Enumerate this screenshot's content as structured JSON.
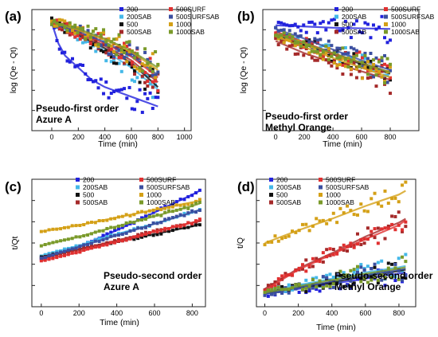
{
  "chart_data": [
    {
      "panel": "(a)",
      "type": "scatter",
      "annotation": [
        "Pseudo-first order",
        "Azure A"
      ],
      "xlabel": "Time (min)",
      "ylabel": "log (Qe - Qt)",
      "xlim": [
        -150,
        1050
      ],
      "ylim": [
        0,
        1
      ],
      "xticks": [
        0,
        200,
        400,
        600,
        800,
        1000
      ],
      "legend_columns": [
        [
          "200",
          "200SAB",
          "500",
          "500SAB"
        ],
        [
          "500SURF",
          "500SURFSAB",
          "1000",
          "1000SAB"
        ]
      ],
      "series": [
        {
          "name": "200",
          "color": "#2222dd",
          "x": [
            0,
            50,
            100,
            200,
            300,
            400,
            500,
            600,
            700,
            800
          ],
          "y": [
            0.89,
            0.72,
            0.62,
            0.52,
            0.42,
            0.36,
            0.32,
            0.28,
            0.24,
            0.2
          ]
        },
        {
          "name": "200SAB",
          "color": "#44b8e8",
          "x": [
            0,
            200,
            400,
            600,
            800
          ],
          "y": [
            0.89,
            0.78,
            0.66,
            0.52,
            0.34
          ]
        },
        {
          "name": "500",
          "color": "#111111",
          "x": [
            0,
            200,
            400,
            600,
            800
          ],
          "y": [
            0.9,
            0.79,
            0.68,
            0.56,
            0.36
          ]
        },
        {
          "name": "500SAB",
          "color": "#a52a2a",
          "x": [
            0,
            200,
            400,
            600,
            800
          ],
          "y": [
            0.9,
            0.8,
            0.7,
            0.58,
            0.4
          ]
        },
        {
          "name": "500SURF",
          "color": "#e03030",
          "x": [
            0,
            200,
            400,
            600,
            800
          ],
          "y": [
            0.9,
            0.81,
            0.72,
            0.61,
            0.44
          ]
        },
        {
          "name": "500SURFSAB",
          "color": "#3b4fa0",
          "x": [
            0,
            200,
            400,
            600,
            800
          ],
          "y": [
            0.9,
            0.82,
            0.73,
            0.62,
            0.46
          ]
        },
        {
          "name": "1000",
          "color": "#d4a017",
          "x": [
            0,
            200,
            400,
            600,
            800
          ],
          "y": [
            0.9,
            0.83,
            0.75,
            0.65,
            0.5
          ]
        },
        {
          "name": "1000SAB",
          "color": "#7a9a2a",
          "x": [
            0,
            200,
            400,
            600,
            800
          ],
          "y": [
            0.9,
            0.84,
            0.76,
            0.66,
            0.52
          ]
        }
      ]
    },
    {
      "panel": "(b)",
      "type": "scatter",
      "annotation": [
        "Pseudo-first order",
        "Methyl Orange"
      ],
      "xlabel": "Time (min)",
      "ylabel": "log (Qe - Qt)",
      "xlim": [
        -90,
        1000
      ],
      "ylim": [
        0,
        1
      ],
      "xticks": [
        0,
        200,
        400,
        600,
        800
      ],
      "legend_columns": [
        [
          "200",
          "200SAB",
          "500",
          "500SAB"
        ],
        [
          "500SURF",
          "500SURFSAB",
          "1000",
          "1000SAB"
        ]
      ],
      "series": [
        {
          "name": "200",
          "color": "#2222dd",
          "x": [
            0,
            200,
            400,
            600,
            800
          ],
          "y": [
            0.87,
            0.86,
            0.85,
            0.845,
            0.84
          ]
        },
        {
          "name": "200SAB",
          "color": "#44b8e8",
          "x": [
            0,
            200,
            400,
            600,
            800
          ],
          "y": [
            0.8,
            0.72,
            0.64,
            0.56,
            0.48
          ]
        },
        {
          "name": "500",
          "color": "#111111",
          "x": [
            0,
            200,
            400,
            600,
            800
          ],
          "y": [
            0.79,
            0.71,
            0.63,
            0.55,
            0.47
          ]
        },
        {
          "name": "500SAB",
          "color": "#a52a2a",
          "x": [
            0,
            200,
            400,
            600,
            800
          ],
          "y": [
            0.74,
            0.64,
            0.56,
            0.49,
            0.42
          ]
        },
        {
          "name": "500SURF",
          "color": "#e03030",
          "x": [
            0,
            200,
            400,
            600,
            800
          ],
          "y": [
            0.82,
            0.73,
            0.64,
            0.56,
            0.48
          ]
        },
        {
          "name": "500SURFSAB",
          "color": "#3b4fa0",
          "x": [
            0,
            200,
            400,
            600,
            800
          ],
          "y": [
            0.84,
            0.76,
            0.67,
            0.58,
            0.5
          ]
        },
        {
          "name": "1000",
          "color": "#d4a017",
          "x": [
            0,
            200,
            400,
            600,
            800
          ],
          "y": [
            0.78,
            0.69,
            0.6,
            0.52,
            0.44
          ]
        },
        {
          "name": "1000SAB",
          "color": "#7a9a2a",
          "x": [
            0,
            200,
            400,
            600,
            800
          ],
          "y": [
            0.8,
            0.72,
            0.64,
            0.56,
            0.48
          ]
        }
      ]
    },
    {
      "panel": "(c)",
      "type": "scatter",
      "annotation": [
        "Pseudo-second order",
        "Azure A"
      ],
      "xlabel": "Time (min)",
      "ylabel": "t/Qt",
      "xlim": [
        -50,
        870
      ],
      "ylim": [
        0,
        1
      ],
      "xticks": [
        0,
        200,
        400,
        600,
        800
      ],
      "legend_columns": [
        [
          "200",
          "200SAB",
          "500",
          "500SAB"
        ],
        [
          "500SURF",
          "500SURFSAB",
          "1000",
          "1000SAB"
        ]
      ],
      "series": [
        {
          "name": "200",
          "color": "#2222dd",
          "x": [
            0,
            200,
            400,
            600,
            800,
            840
          ],
          "y": [
            0.37,
            0.47,
            0.6,
            0.74,
            0.88,
            0.91
          ]
        },
        {
          "name": "200SAB",
          "color": "#44b8e8",
          "x": [
            0,
            200,
            400,
            600,
            800,
            840
          ],
          "y": [
            0.4,
            0.48,
            0.57,
            0.65,
            0.74,
            0.76
          ]
        },
        {
          "name": "500",
          "color": "#111111",
          "x": [
            0,
            200,
            400,
            600,
            800,
            840
          ],
          "y": [
            0.39,
            0.45,
            0.51,
            0.57,
            0.63,
            0.65
          ]
        },
        {
          "name": "500SAB",
          "color": "#a52a2a",
          "x": [
            0,
            200,
            400,
            600,
            800,
            840
          ],
          "y": [
            0.38,
            0.45,
            0.52,
            0.59,
            0.66,
            0.67
          ]
        },
        {
          "name": "500SURF",
          "color": "#e03030",
          "x": [
            0,
            200,
            400,
            600,
            800,
            840
          ],
          "y": [
            0.36,
            0.43,
            0.51,
            0.59,
            0.66,
            0.68
          ]
        },
        {
          "name": "500SURFSAB",
          "color": "#3b4fa0",
          "x": [
            0,
            200,
            400,
            600,
            800,
            840
          ],
          "y": [
            0.38,
            0.47,
            0.56,
            0.65,
            0.74,
            0.76
          ]
        },
        {
          "name": "1000",
          "color": "#d4a017",
          "x": [
            0,
            200,
            400,
            600,
            800,
            840
          ],
          "y": [
            0.59,
            0.64,
            0.7,
            0.76,
            0.82,
            0.83
          ]
        },
        {
          "name": "1000SAB",
          "color": "#7a9a2a",
          "x": [
            0,
            200,
            400,
            600,
            800,
            840
          ],
          "y": [
            0.48,
            0.55,
            0.63,
            0.71,
            0.79,
            0.81
          ]
        }
      ]
    },
    {
      "panel": "(d)",
      "type": "scatter",
      "annotation": [
        "Pseudo-second order",
        "Methyl Orange"
      ],
      "xlabel": "Time (min)",
      "ylabel": "t/Q",
      "xlim": [
        -50,
        900
      ],
      "ylim": [
        0,
        1
      ],
      "xticks": [
        0,
        200,
        400,
        600,
        800
      ],
      "legend_columns": [
        [
          "200",
          "200SAB",
          "500",
          "500SAB"
        ],
        [
          "500SURF",
          "500SURFSAB",
          "1000",
          "1000SAB"
        ]
      ],
      "series": [
        {
          "name": "200",
          "color": "#2222dd",
          "x": [
            0,
            200,
            400,
            600,
            800,
            840
          ],
          "y": [
            0.1,
            0.14,
            0.18,
            0.22,
            0.26,
            0.27
          ]
        },
        {
          "name": "200SAB",
          "color": "#44b8e8",
          "x": [
            0,
            200,
            400,
            600,
            800,
            840
          ],
          "y": [
            0.12,
            0.17,
            0.22,
            0.27,
            0.31,
            0.32
          ]
        },
        {
          "name": "500",
          "color": "#111111",
          "x": [
            0,
            200,
            400,
            600,
            800,
            840
          ],
          "y": [
            0.11,
            0.15,
            0.19,
            0.24,
            0.28,
            0.29
          ]
        },
        {
          "name": "500SAB",
          "color": "#a52a2a",
          "x": [
            0,
            200,
            400,
            600,
            800,
            840
          ],
          "y": [
            0.14,
            0.3,
            0.42,
            0.55,
            0.66,
            0.69
          ]
        },
        {
          "name": "500SURF",
          "color": "#e03030",
          "x": [
            0,
            200,
            400,
            600,
            800,
            840
          ],
          "y": [
            0.13,
            0.29,
            0.41,
            0.53,
            0.64,
            0.68
          ]
        },
        {
          "name": "500SURFSAB",
          "color": "#3b4fa0",
          "x": [
            0,
            200,
            400,
            600,
            800,
            840
          ],
          "y": [
            0.1,
            0.15,
            0.2,
            0.25,
            0.29,
            0.3
          ]
        },
        {
          "name": "1000",
          "color": "#d4a017",
          "x": [
            0,
            200,
            400,
            600,
            800,
            840
          ],
          "y": [
            0.5,
            0.6,
            0.69,
            0.79,
            0.88,
            0.91
          ]
        },
        {
          "name": "1000SAB",
          "color": "#7a9a2a",
          "x": [
            0,
            200,
            400,
            600,
            800,
            840
          ],
          "y": [
            0.11,
            0.16,
            0.21,
            0.26,
            0.3,
            0.31
          ]
        }
      ]
    }
  ]
}
